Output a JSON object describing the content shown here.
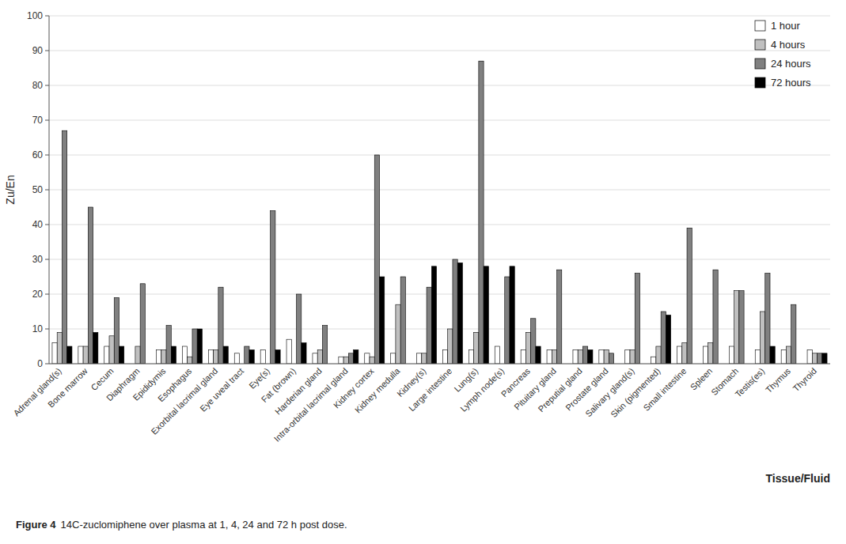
{
  "chart_data": {
    "type": "bar",
    "categories": [
      "Adrenal gland(s)",
      "Bone marrow",
      "Cecum",
      "Diaphragm",
      "Epididymis",
      "Esophagus",
      "Exorbital lacrimal gland",
      "Eye uveal tract",
      "Eye(s)",
      "Fat (brown)",
      "Harderian gland",
      "Intra-orbital lacrimal gland",
      "Kidney cortex",
      "Kidney medulla",
      "Kidney(s)",
      "Large intestine",
      "Lung(s)",
      "Lymph node(s)",
      "Pancreas",
      "Pituitary gland",
      "Preputial gland",
      "Prostate gland",
      "Salivary gland(s)",
      "Skin (pigmented)",
      "Small intestine",
      "Spleen",
      "Stomach",
      "Testis(es)",
      "Thymus",
      "Thyroid"
    ],
    "series": [
      {
        "name": "1 hour",
        "color": "#ffffff",
        "values": [
          6,
          5,
          5,
          0,
          4,
          5,
          4,
          3,
          4,
          7,
          3,
          2,
          3,
          3,
          3,
          4,
          4,
          5,
          4,
          4,
          4,
          4,
          4,
          2,
          5,
          5,
          5,
          4,
          4,
          4
        ]
      },
      {
        "name": "4 hours",
        "color": "#c0c0c0",
        "values": [
          9,
          5,
          8,
          5,
          4,
          2,
          4,
          0,
          0,
          0,
          4,
          2,
          2,
          17,
          3,
          10,
          9,
          0,
          9,
          4,
          4,
          4,
          4,
          5,
          6,
          6,
          21,
          15,
          5,
          3
        ]
      },
      {
        "name": "24 hours",
        "color": "#808080",
        "values": [
          67,
          45,
          19,
          23,
          11,
          10,
          22,
          5,
          44,
          20,
          11,
          3,
          60,
          25,
          22,
          30,
          87,
          25,
          13,
          27,
          5,
          3,
          26,
          15,
          39,
          27,
          21,
          26,
          17,
          3
        ]
      },
      {
        "name": "72 hours",
        "color": "#000000",
        "values": [
          5,
          9,
          5,
          0,
          5,
          10,
          5,
          4,
          4,
          6,
          0,
          4,
          25,
          0,
          28,
          29,
          28,
          28,
          5,
          0,
          4,
          0,
          0,
          14,
          0,
          0,
          0,
          5,
          0,
          3
        ]
      }
    ],
    "y_label": "Zu/En",
    "x_label": "Tissue/Fluid",
    "annotations": [
      "Figure 4",
      "14C-zuclomiphene over plasma at 1, 4, 24 and 72 h post dose."
    ],
    "ylim": [
      0,
      100
    ],
    "yticks": [
      0,
      10,
      20,
      30,
      40,
      50,
      60,
      70,
      80,
      90,
      100
    ],
    "grid": true,
    "legend": "upper right"
  }
}
